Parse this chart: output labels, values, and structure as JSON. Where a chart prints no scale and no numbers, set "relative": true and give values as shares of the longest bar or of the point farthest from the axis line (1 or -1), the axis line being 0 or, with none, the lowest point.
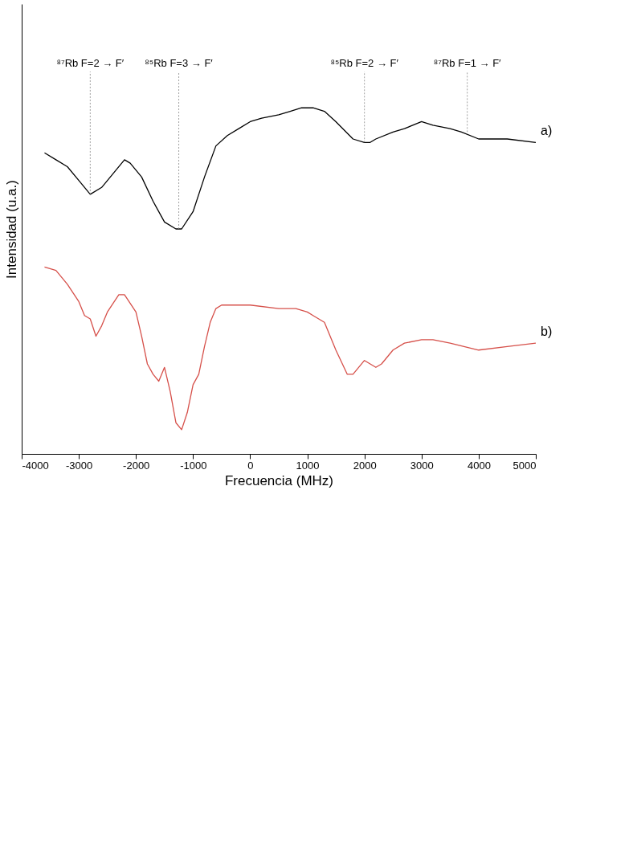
{
  "chart_data": {
    "type": "line",
    "xlabel": "Frecuencia (MHz)",
    "ylabel": "Intensidad (u.a.)",
    "relative": true,
    "grid": false,
    "legend": false,
    "marker": "none",
    "line_style": "solid",
    "tick_labels": "x",
    "xlim": [
      -4000,
      5000
    ],
    "xticks": [
      -4000,
      -3000,
      -2000,
      -1000,
      0,
      1000,
      2000,
      3000,
      4000,
      5000
    ],
    "series": [
      {
        "name": "a)",
        "color": "#000000",
        "x": [
          -3600,
          -3400,
          -3200,
          -3000,
          -2800,
          -2600,
          -2400,
          -2200,
          -2100,
          -1900,
          -1700,
          -1500,
          -1300,
          -1200,
          -1000,
          -800,
          -600,
          -400,
          -200,
          0,
          200,
          500,
          700,
          900,
          1100,
          1300,
          1500,
          1800,
          2000,
          2100,
          2200,
          2500,
          2700,
          3000,
          3200,
          3500,
          3700,
          4000,
          4500,
          5000
        ],
        "values": [
          0.87,
          0.85,
          0.83,
          0.79,
          0.75,
          0.77,
          0.81,
          0.85,
          0.84,
          0.8,
          0.73,
          0.67,
          0.65,
          0.65,
          0.7,
          0.8,
          0.89,
          0.92,
          0.94,
          0.96,
          0.97,
          0.98,
          0.99,
          1.0,
          1.0,
          0.99,
          0.96,
          0.91,
          0.9,
          0.9,
          0.91,
          0.93,
          0.94,
          0.96,
          0.95,
          0.94,
          0.93,
          0.91,
          0.91,
          0.9
        ]
      },
      {
        "name": "b)",
        "color": "#d6504a",
        "x": [
          -3600,
          -3400,
          -3200,
          -3000,
          -2900,
          -2800,
          -2700,
          -2600,
          -2500,
          -2300,
          -2200,
          -2000,
          -1900,
          -1800,
          -1700,
          -1600,
          -1500,
          -1400,
          -1300,
          -1200,
          -1100,
          -1000,
          -900,
          -800,
          -700,
          -600,
          -500,
          0,
          500,
          800,
          1000,
          1100,
          1300,
          1400,
          1500,
          1700,
          1800,
          2000,
          2100,
          2200,
          2300,
          2500,
          2700,
          3000,
          3200,
          3500,
          4000,
          4500,
          5000
        ],
        "values": [
          0.54,
          0.53,
          0.49,
          0.44,
          0.4,
          0.39,
          0.34,
          0.37,
          0.41,
          0.46,
          0.46,
          0.41,
          0.34,
          0.26,
          0.23,
          0.21,
          0.25,
          0.18,
          0.09,
          0.07,
          0.12,
          0.2,
          0.23,
          0.31,
          0.38,
          0.42,
          0.43,
          0.43,
          0.42,
          0.42,
          0.41,
          0.4,
          0.38,
          0.34,
          0.3,
          0.23,
          0.23,
          0.27,
          0.26,
          0.25,
          0.26,
          0.3,
          0.32,
          0.33,
          0.33,
          0.32,
          0.3,
          0.31,
          0.32
        ]
      }
    ],
    "annotations": [
      {
        "text": "⁸⁷Rb F=2 → F′",
        "x": -2800,
        "y": 0.75
      },
      {
        "text": "⁸⁵Rb F=3 → F′",
        "x": -1250,
        "y": 0.65
      },
      {
        "text": "⁸⁵Rb F=2 → F′",
        "x": 2000,
        "y": 0.9
      },
      {
        "text": "⁸⁷Rb F=1 → F′",
        "x": 3800,
        "y": 0.93
      }
    ]
  }
}
